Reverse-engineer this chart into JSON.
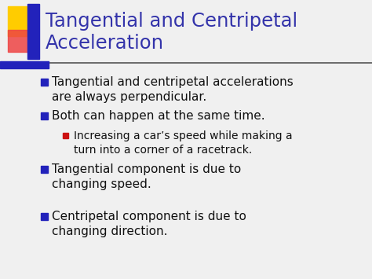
{
  "title_line1": "Tangential and Centripetal",
  "title_line2": "Acceleration",
  "title_color": "#3333aa",
  "background_color": "#f0f0f0",
  "bullet_color": "#2222bb",
  "sub_bullet_color": "#cc1111",
  "text_color": "#111111",
  "bullets": [
    {
      "level": 1,
      "text": "Tangential and centripetal accelerations\nare always perpendicular.",
      "bullet_color": "#2222bb"
    },
    {
      "level": 1,
      "text": "Both can happen at the same time.",
      "bullet_color": "#2222bb"
    },
    {
      "level": 2,
      "text": "Increasing a car’s speed while making a\nturn into a corner of a racetrack.",
      "bullet_color": "#cc1111"
    },
    {
      "level": 1,
      "text": "Tangential component is due to\nchanging speed.",
      "bullet_color": "#2222bb"
    },
    {
      "level": 1,
      "text": "Centripetal component is due to\nchanging direction.",
      "bullet_color": "#2222bb"
    }
  ],
  "accent_yellow": "#ffcc00",
  "accent_red": "#ee4444",
  "accent_blue": "#2222bb",
  "divider_color": "#555555",
  "title_font_size": 17.5,
  "bullet_font_size": 11,
  "sub_bullet_font_size": 10
}
